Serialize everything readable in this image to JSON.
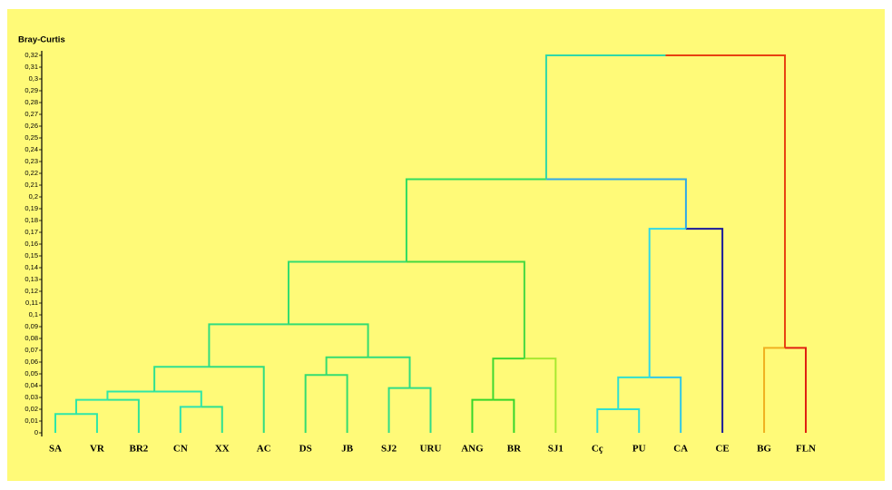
{
  "chart_data": {
    "type": "dendrogram",
    "y_label": "Bray-Curtis",
    "leaves": [
      "SA",
      "VR",
      "BR2",
      "CN",
      "XX",
      "AC",
      "DS",
      "JB",
      "SJ2",
      "URU",
      "ANG",
      "BR",
      "SJ1",
      "Cç",
      "PU",
      "CA",
      "CE",
      "BG",
      "FLN"
    ],
    "merges": [
      {
        "left": 0,
        "right": 1,
        "height": 0.016,
        "colors": [
          "#2ee6a8",
          "#2ee6a8"
        ]
      },
      {
        "left": 19,
        "right": 2,
        "height": 0.028,
        "colors": [
          "#2ee6a8",
          "#2ee29a"
        ]
      },
      {
        "left": 3,
        "right": 4,
        "height": 0.022,
        "colors": [
          "#2ee2b0",
          "#2ee090"
        ]
      },
      {
        "left": 20,
        "right": 21,
        "height": 0.035,
        "colors": [
          "#2ee6a8",
          "#2ee6a8"
        ]
      },
      {
        "left": 22,
        "right": 5,
        "height": 0.056,
        "colors": [
          "#30e090",
          "#30dc80"
        ]
      },
      {
        "left": 6,
        "right": 7,
        "height": 0.049,
        "colors": [
          "#34dc70",
          "#34dc70"
        ]
      },
      {
        "left": 8,
        "right": 9,
        "height": 0.038,
        "colors": [
          "#30dc88",
          "#30dc88"
        ]
      },
      {
        "left": 24,
        "right": 25,
        "height": 0.064,
        "colors": [
          "#34dc70",
          "#30dc80"
        ]
      },
      {
        "left": 23,
        "right": 26,
        "height": 0.092,
        "colors": [
          "#30dc80",
          "#34dc70"
        ]
      },
      {
        "left": 10,
        "right": 11,
        "height": 0.028,
        "colors": [
          "#36d62a",
          "#36d62a"
        ]
      },
      {
        "left": 28,
        "right": 12,
        "height": 0.063,
        "colors": [
          "#40d830",
          "#a8e830"
        ]
      },
      {
        "left": 27,
        "right": 29,
        "height": 0.145,
        "colors": [
          "#34dc70",
          "#44d840"
        ]
      },
      {
        "left": 13,
        "right": 14,
        "height": 0.02,
        "colors": [
          "#30e0d0",
          "#30e0d0"
        ]
      },
      {
        "left": 31,
        "right": 15,
        "height": 0.047,
        "colors": [
          "#30e0d0",
          "#30c8e8"
        ]
      },
      {
        "left": 32,
        "right": 16,
        "height": 0.173,
        "colors": [
          "#30d8e8",
          "#1a1a9a"
        ]
      },
      {
        "left": 30,
        "right": 33,
        "height": 0.215,
        "colors": [
          "#30dc60",
          "#30a8e8"
        ]
      },
      {
        "left": 17,
        "right": 18,
        "height": 0.072,
        "colors": [
          "#f0b020",
          "#e02010"
        ]
      },
      {
        "left": 34,
        "right": 35,
        "height": 0.32,
        "colors": [
          "#30d8a8",
          "#e84010"
        ]
      }
    ],
    "ylim": [
      0,
      0.32
    ],
    "yticks": [
      0,
      {
        "value": 0.01,
        "label": "0,01"
      },
      {
        "value": 0.02,
        "label": "0,02"
      },
      {
        "value": 0.03,
        "label": "0,03"
      },
      {
        "value": 0.04,
        "label": "0,04"
      },
      {
        "value": 0.05,
        "label": "0,05"
      },
      {
        "value": 0.06,
        "label": "0,06"
      },
      {
        "value": 0.07,
        "label": "0,07"
      },
      {
        "value": 0.08,
        "label": "0,08"
      },
      {
        "value": 0.09,
        "label": "0,09"
      },
      {
        "value": 0.1,
        "label": "0,1"
      },
      {
        "value": 0.11,
        "label": "0,11"
      },
      {
        "value": 0.12,
        "label": "0,12"
      },
      {
        "value": 0.13,
        "label": "0,13"
      },
      {
        "value": 0.14,
        "label": "0,14"
      },
      {
        "value": 0.15,
        "label": "0,15"
      },
      {
        "value": 0.16,
        "label": "0,16"
      },
      {
        "value": 0.17,
        "label": "0,17"
      },
      {
        "value": 0.18,
        "label": "0,18"
      },
      {
        "value": 0.19,
        "label": "0,19"
      },
      {
        "value": 0.2,
        "label": "0,2"
      },
      {
        "value": 0.21,
        "label": "0,21"
      },
      {
        "value": 0.22,
        "label": "0,22"
      },
      {
        "value": 0.23,
        "label": "0,23"
      },
      {
        "value": 0.24,
        "label": "0,24"
      },
      {
        "value": 0.25,
        "label": "0,25"
      },
      {
        "value": 0.26,
        "label": "0,26"
      },
      {
        "value": 0.27,
        "label": "0,27"
      },
      {
        "value": 0.28,
        "label": "0,28"
      },
      {
        "value": 0.29,
        "label": "0,29"
      },
      {
        "value": 0.3,
        "label": "0,3"
      },
      {
        "value": 0.31,
        "label": "0,31"
      },
      {
        "value": 0.32,
        "label": "0,32"
      }
    ],
    "background": "#fffa78"
  }
}
